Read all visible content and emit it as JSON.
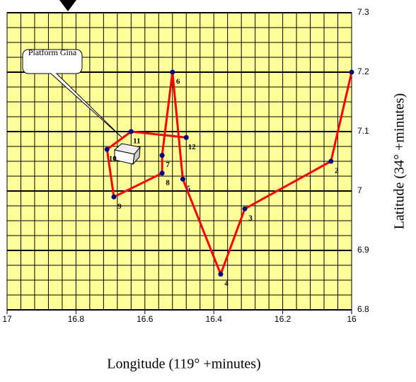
{
  "chart_data": {
    "type": "line",
    "x": [
      16.0,
      16.06,
      16.31,
      16.38,
      16.49,
      16.52,
      16.55,
      16.55,
      16.69,
      16.71,
      16.64,
      16.48
    ],
    "values": [
      7.2,
      7.05,
      6.97,
      6.86,
      7.02,
      7.2,
      7.06,
      7.03,
      6.99,
      7.07,
      7.1,
      7.09
    ],
    "point_labels": [
      null,
      "2",
      "3",
      "4",
      "5",
      "6",
      "7",
      "8",
      "9",
      "10",
      "11",
      "12"
    ],
    "color": "#ff0000",
    "marker_color": "#000080",
    "background": "#ffff99",
    "xlim": [
      17,
      16
    ],
    "ylim": [
      6.8,
      7.3
    ],
    "xticks": [
      17,
      16.8,
      16.6,
      16.4,
      16.2,
      16
    ],
    "yticks": [
      6.8,
      6.9,
      7,
      7.1,
      7.2,
      7.3
    ],
    "grid": true,
    "xlabel": "Longitude (119° +minutes)",
    "ylabel": "Latitude (34° +minutes)",
    "annotation": "Platform Gina"
  }
}
